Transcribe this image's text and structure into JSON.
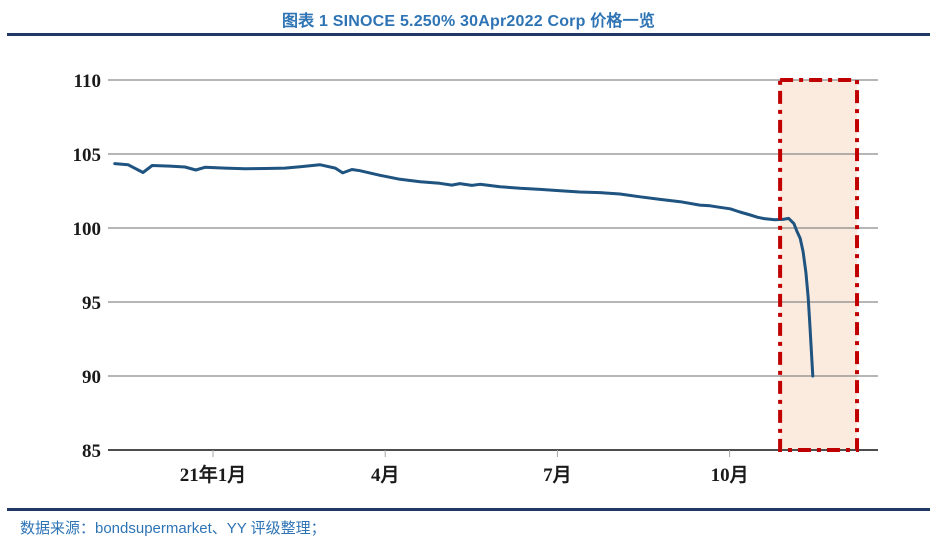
{
  "header": {
    "title": "图表 1 SINOCE 5.250% 30Apr2022 Corp 价格一览"
  },
  "footer": {
    "source": "数据来源：bondsupermarket、YY 评级整理；"
  },
  "colors": {
    "heading_blue": "#2E74B5",
    "rule_navy": "#1F3864",
    "line_blue": "#1F5380",
    "gridline_gray": "#6E6E6E",
    "axis_gray": "#4D4D4D",
    "tick_gray": "#A6A6A6",
    "highlight_red": "#C00000",
    "highlight_fill": "#FBEBDF"
  },
  "chart_data": {
    "type": "line",
    "title": "SINOCE 5.250% 30Apr2022 Corp 价格一览",
    "xlabel": "",
    "ylabel": "",
    "ylim": [
      85,
      110
    ],
    "y_ticks": [
      110,
      105,
      100,
      95,
      90,
      85
    ],
    "xlim_months": [
      -1.83,
      11.58
    ],
    "x_ticks": [
      {
        "m": 0,
        "label": "21年1月"
      },
      {
        "m": 3,
        "label": "4月"
      },
      {
        "m": 6,
        "label": "7月"
      },
      {
        "m": 9,
        "label": "10月"
      }
    ],
    "grid": "horizontal",
    "legend": "none",
    "series": [
      {
        "name": "price",
        "points": [
          [
            -1.71,
            104.35
          ],
          [
            -1.48,
            104.28
          ],
          [
            -1.22,
            103.75
          ],
          [
            -1.06,
            104.22
          ],
          [
            -0.75,
            104.18
          ],
          [
            -0.49,
            104.12
          ],
          [
            -0.3,
            103.92
          ],
          [
            -0.14,
            104.1
          ],
          [
            0.21,
            104.05
          ],
          [
            0.56,
            104.0
          ],
          [
            0.91,
            104.02
          ],
          [
            1.25,
            104.05
          ],
          [
            1.52,
            104.14
          ],
          [
            1.86,
            104.28
          ],
          [
            2.13,
            104.05
          ],
          [
            2.26,
            103.72
          ],
          [
            2.42,
            103.95
          ],
          [
            2.56,
            103.87
          ],
          [
            2.91,
            103.56
          ],
          [
            3.26,
            103.29
          ],
          [
            3.61,
            103.13
          ],
          [
            3.95,
            103.02
          ],
          [
            4.16,
            102.9
          ],
          [
            4.3,
            103.0
          ],
          [
            4.51,
            102.88
          ],
          [
            4.65,
            102.95
          ],
          [
            5.0,
            102.79
          ],
          [
            5.35,
            102.68
          ],
          [
            5.7,
            102.61
          ],
          [
            6.05,
            102.52
          ],
          [
            6.39,
            102.43
          ],
          [
            6.74,
            102.39
          ],
          [
            7.09,
            102.3
          ],
          [
            7.44,
            102.11
          ],
          [
            7.79,
            101.93
          ],
          [
            8.14,
            101.78
          ],
          [
            8.48,
            101.55
          ],
          [
            8.66,
            101.5
          ],
          [
            8.83,
            101.4
          ],
          [
            9.01,
            101.3
          ],
          [
            9.18,
            101.08
          ],
          [
            9.36,
            100.88
          ],
          [
            9.49,
            100.72
          ],
          [
            9.62,
            100.62
          ],
          [
            9.79,
            100.56
          ],
          [
            9.93,
            100.58
          ],
          [
            10.03,
            100.65
          ],
          [
            10.12,
            100.3
          ],
          [
            10.17,
            99.8
          ],
          [
            10.23,
            99.3
          ],
          [
            10.28,
            98.4
          ],
          [
            10.33,
            97.0
          ],
          [
            10.37,
            95.3
          ],
          [
            10.4,
            93.3
          ],
          [
            10.43,
            91.3
          ],
          [
            10.45,
            90.0
          ]
        ]
      }
    ],
    "highlight_box": {
      "m_from": 9.88,
      "m_to": 11.22,
      "v_from": 85,
      "v_to": 110,
      "border_style": "dash-dot"
    }
  }
}
